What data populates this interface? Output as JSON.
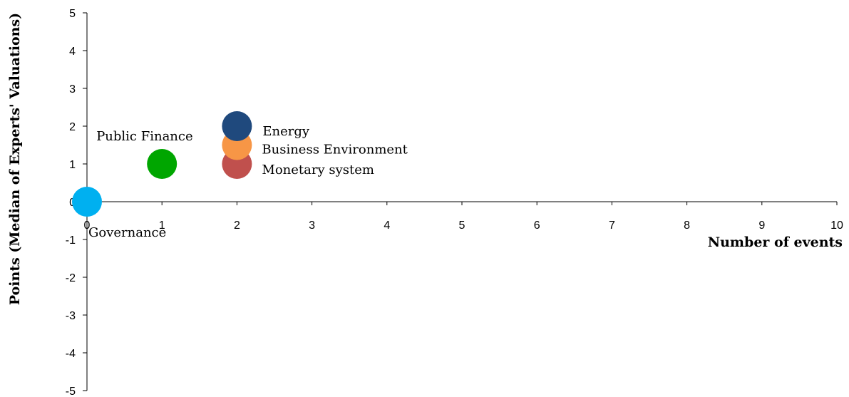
{
  "chart_data": {
    "type": "scatter",
    "title": "",
    "xlabel": "Number of events",
    "ylabel": "Points (Median of Experts' Valuations)",
    "xlim": [
      0,
      10
    ],
    "ylim": [
      -5,
      5
    ],
    "x_ticks": [
      0,
      1,
      2,
      3,
      4,
      5,
      6,
      7,
      8,
      9,
      10
    ],
    "y_ticks": [
      -5,
      -4,
      -3,
      -2,
      -1,
      0,
      1,
      2,
      3,
      4,
      5
    ],
    "grid": false,
    "legend": "none",
    "points": [
      {
        "label": "Governance",
        "x": 0,
        "y": 0,
        "color": "#00b0f0"
      },
      {
        "label": "Public Finance",
        "x": 1,
        "y": 1,
        "color": "#00a600"
      },
      {
        "label": "Monetary system",
        "x": 2,
        "y": 1,
        "color": "#c0504d"
      },
      {
        "label": "Business Environment",
        "x": 2,
        "y": 1.5,
        "color": "#f79646"
      },
      {
        "label": "Energy",
        "x": 2,
        "y": 2,
        "color": "#1f497d"
      }
    ]
  }
}
